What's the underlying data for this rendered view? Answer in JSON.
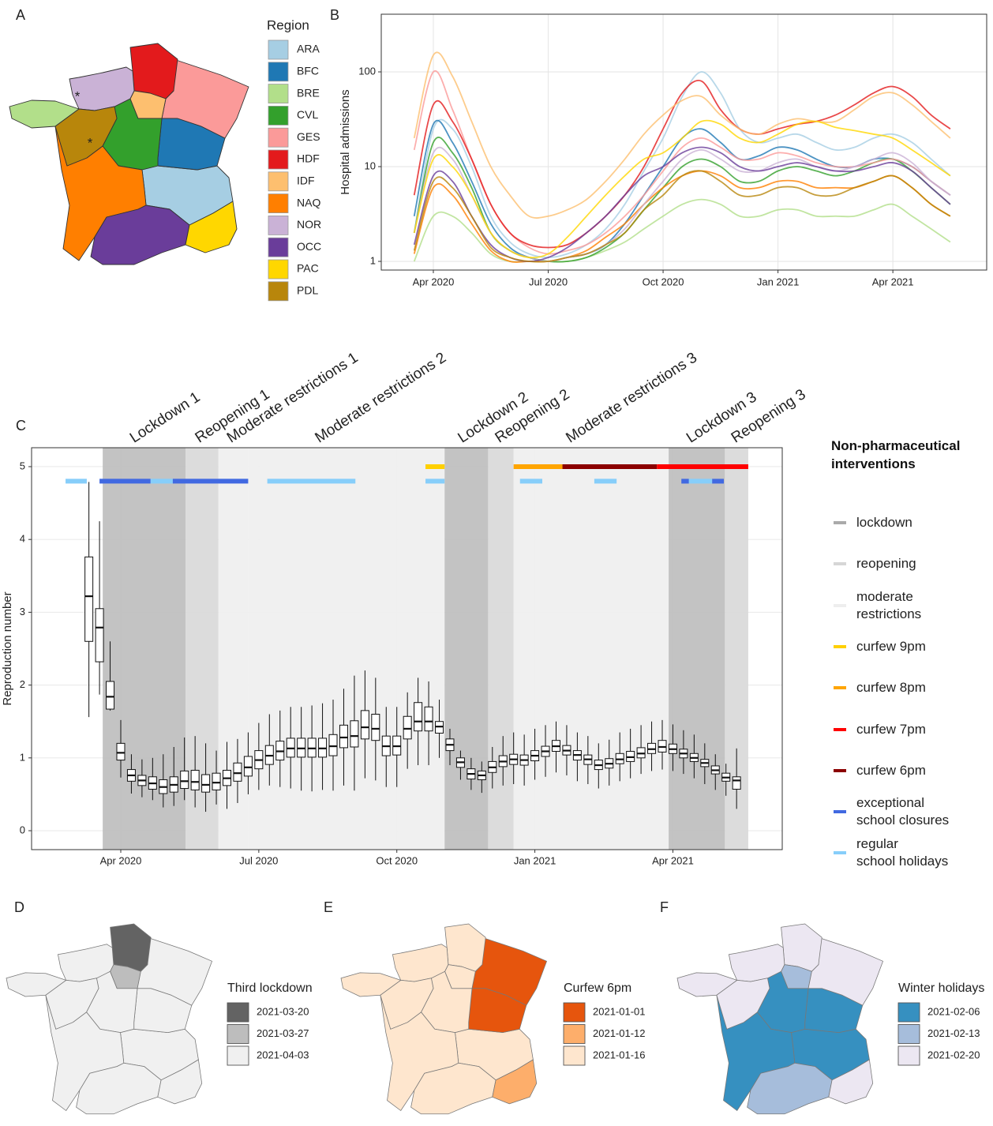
{
  "panel_labels": [
    "A",
    "B",
    "C",
    "D",
    "E",
    "F"
  ],
  "map_annotations": [
    "*",
    "*"
  ],
  "chart_data": [
    {
      "type": "line",
      "ylabel": "Hospital admissions",
      "log_y": true,
      "grid": true,
      "legend_title": "Region",
      "categories": [
        null,
        "Apr 2020",
        null,
        null,
        null,
        null,
        null,
        "Jul 2020",
        null,
        null,
        null,
        null,
        null,
        "Oct 2020",
        null,
        null,
        null,
        null,
        null,
        "Jan 2021",
        null,
        null,
        null,
        null,
        null,
        "Apr 2021",
        null,
        null,
        null
      ],
      "xlim": [
        -1.72,
        29.9
      ],
      "ylim": [
        0.81,
        406
      ],
      "yticks": [
        1,
        10,
        100
      ],
      "series": [
        {
          "name": "ARA",
          "color": "#a6cee3",
          "values": [
            2,
            25,
            25,
            10,
            3,
            1.6,
            1.2,
            1.1,
            1.2,
            1.5,
            2.2,
            4,
            9,
            20,
            55,
            100,
            60,
            25,
            18,
            20,
            22,
            18,
            15,
            16,
            20,
            22,
            18,
            12,
            8
          ]
        },
        {
          "name": "BFC",
          "color": "#1f78b4",
          "values": [
            3,
            28,
            18,
            7,
            2.5,
            1.4,
            1.1,
            1,
            1.1,
            1.2,
            1.5,
            2.5,
            5,
            10,
            20,
            25,
            18,
            12,
            13,
            16,
            15,
            12,
            10,
            10,
            12,
            12,
            10,
            7,
            5
          ]
        },
        {
          "name": "BRE",
          "color": "#b2df8a",
          "values": [
            1,
            3,
            3,
            2,
            1.2,
            1,
            1,
            1,
            1,
            1.1,
            1.3,
            1.6,
            2.2,
            3,
            4,
            4.5,
            4,
            3,
            3,
            3.5,
            3.5,
            3,
            3,
            3,
            3.5,
            4,
            3,
            2.2,
            1.6
          ]
        },
        {
          "name": "CVL",
          "color": "#33a02c",
          "values": [
            2,
            18,
            14,
            6,
            2,
            1.3,
            1.1,
            1,
            1,
            1.1,
            1.4,
            2,
            3.5,
            6,
            10,
            12,
            10,
            7,
            7,
            9,
            10,
            9,
            8,
            9,
            11,
            12,
            9,
            6,
            4
          ]
        },
        {
          "name": "GES",
          "color": "#fb9a99",
          "values": [
            15,
            100,
            40,
            12,
            4,
            2,
            1.4,
            1.2,
            1.3,
            1.5,
            2,
            3,
            5,
            9,
            16,
            20,
            16,
            12,
            12,
            14,
            13,
            11,
            10,
            10,
            11,
            12,
            10,
            7,
            5
          ]
        },
        {
          "name": "HDF",
          "color": "#e31a1c",
          "values": [
            5,
            45,
            30,
            12,
            4,
            2,
            1.5,
            1.4,
            1.5,
            2,
            3,
            5,
            10,
            25,
            60,
            80,
            40,
            25,
            22,
            25,
            28,
            30,
            35,
            45,
            60,
            70,
            55,
            35,
            25
          ]
        },
        {
          "name": "IDF",
          "color": "#fdbf6f",
          "values": [
            20,
            150,
            90,
            30,
            10,
            5,
            3,
            3,
            3.5,
            4.5,
            7,
            12,
            22,
            35,
            50,
            55,
            35,
            25,
            22,
            28,
            32,
            30,
            30,
            40,
            55,
            60,
            45,
            30,
            20
          ]
        },
        {
          "name": "NAQ",
          "color": "#ff7f00",
          "values": [
            1.2,
            6,
            5,
            2.5,
            1.3,
            1,
            1,
            1,
            1.1,
            1.3,
            1.8,
            2.5,
            4,
            6,
            8,
            9,
            8,
            6,
            6,
            7,
            7,
            6,
            6,
            6,
            7,
            8,
            6,
            4,
            3
          ]
        },
        {
          "name": "NOR",
          "color": "#cab2d6",
          "values": [
            2,
            14,
            12,
            5,
            2,
            1.3,
            1.1,
            1,
            1.1,
            1.2,
            1.5,
            2.2,
            4,
            7,
            12,
            15,
            12,
            9,
            9,
            11,
            12,
            10,
            9,
            10,
            12,
            14,
            11,
            7,
            5
          ]
        },
        {
          "name": "OCC",
          "color": "#6a3d9a",
          "values": [
            1.5,
            8,
            7,
            3,
            1.5,
            1.1,
            1,
            1.1,
            1.4,
            2,
            3,
            5,
            8,
            10,
            14,
            16,
            14,
            10,
            9,
            10,
            11,
            10,
            9,
            9,
            10,
            11,
            9,
            6,
            4
          ]
        },
        {
          "name": "PAC",
          "color": "#ffd700",
          "values": [
            2,
            12,
            10,
            5,
            2,
            1.3,
            1.1,
            1.2,
            1.8,
            3,
            5,
            8,
            12,
            14,
            20,
            30,
            28,
            20,
            18,
            22,
            28,
            30,
            26,
            24,
            22,
            20,
            15,
            11,
            8
          ]
        },
        {
          "name": "PDL",
          "color": "#b8860b",
          "values": [
            1.3,
            7,
            6,
            3,
            1.4,
            1.1,
            1,
            1,
            1.1,
            1.2,
            1.5,
            2,
            3.5,
            5,
            8,
            9,
            7,
            5,
            5,
            6,
            6,
            5,
            5,
            6,
            7,
            8,
            6,
            4,
            3
          ]
        }
      ]
    },
    {
      "type": "box",
      "ylabel": "Reproduction number",
      "grid": true,
      "categories": [
        null,
        null,
        null,
        "Apr 2020",
        null,
        null,
        null,
        null,
        null,
        null,
        null,
        null,
        null,
        null,
        null,
        null,
        "Jul 2020",
        null,
        null,
        null,
        null,
        null,
        null,
        null,
        null,
        null,
        null,
        null,
        null,
        "Oct 2020",
        null,
        null,
        null,
        null,
        null,
        null,
        null,
        null,
        null,
        null,
        null,
        null,
        "Jan 2021",
        null,
        null,
        null,
        null,
        null,
        null,
        null,
        null,
        null,
        null,
        null,
        null,
        "Apr 2021",
        null,
        null,
        null,
        null,
        null,
        null
      ],
      "xlim": [
        -5.4,
        65.3
      ],
      "ylim": [
        -0.26,
        5.26
      ],
      "yticks": [
        0,
        1,
        2,
        3,
        4,
        5
      ],
      "low": [
        1.56,
        1.87,
        1.65,
        0.73,
        0.51,
        0.46,
        0.42,
        0.32,
        0.34,
        0.42,
        0.32,
        0.26,
        0.36,
        0.3,
        0.38,
        0.5,
        0.56,
        0.62,
        0.6,
        0.58,
        0.55,
        0.54,
        0.56,
        0.55,
        0.62,
        0.55,
        0.72,
        0.69,
        0.6,
        0.6,
        0.85,
        0.9,
        0.9,
        1.0,
        0.9,
        0.7,
        0.56,
        0.52,
        0.58,
        0.62,
        0.64,
        0.62,
        0.7,
        0.74,
        0.8,
        0.76,
        0.68,
        0.64,
        0.58,
        0.62,
        0.68,
        0.72,
        0.78,
        0.82,
        0.84,
        0.82,
        0.78,
        0.72,
        0.64,
        0.56,
        0.48,
        0.3
      ],
      "q1": [
        2.6,
        2.32,
        1.67,
        0.97,
        0.68,
        0.62,
        0.57,
        0.51,
        0.53,
        0.58,
        0.56,
        0.53,
        0.56,
        0.62,
        0.68,
        0.75,
        0.85,
        0.91,
        0.97,
        1.01,
        1.01,
        1.01,
        1.01,
        1.03,
        1.14,
        1.15,
        1.26,
        1.24,
        1.03,
        1.04,
        1.26,
        1.37,
        1.37,
        1.34,
        1.1,
        0.87,
        0.71,
        0.7,
        0.8,
        0.88,
        0.91,
        0.9,
        0.96,
        1.02,
        1.09,
        1.04,
        0.97,
        0.91,
        0.84,
        0.86,
        0.92,
        0.95,
        1.0,
        1.06,
        1.08,
        1.06,
        1.0,
        0.95,
        0.88,
        0.78,
        0.68,
        0.57
      ],
      "median": [
        3.22,
        2.79,
        1.84,
        1.07,
        0.76,
        0.69,
        0.65,
        0.6,
        0.63,
        0.68,
        0.67,
        0.63,
        0.66,
        0.72,
        0.79,
        0.87,
        0.97,
        1.03,
        1.09,
        1.13,
        1.13,
        1.13,
        1.13,
        1.16,
        1.28,
        1.3,
        1.42,
        1.4,
        1.16,
        1.16,
        1.4,
        1.5,
        1.5,
        1.43,
        1.18,
        0.94,
        0.78,
        0.76,
        0.87,
        0.95,
        0.98,
        0.97,
        1.03,
        1.09,
        1.16,
        1.1,
        1.04,
        0.98,
        0.9,
        0.92,
        0.98,
        1.01,
        1.06,
        1.12,
        1.15,
        1.12,
        1.06,
        1.0,
        0.93,
        0.83,
        0.73,
        0.69
      ],
      "q3": [
        3.76,
        3.05,
        2.05,
        1.2,
        0.84,
        0.76,
        0.74,
        0.7,
        0.74,
        0.82,
        0.83,
        0.77,
        0.79,
        0.83,
        0.93,
        1.02,
        1.1,
        1.17,
        1.23,
        1.27,
        1.27,
        1.27,
        1.27,
        1.32,
        1.45,
        1.51,
        1.65,
        1.6,
        1.3,
        1.3,
        1.57,
        1.76,
        1.7,
        1.5,
        1.26,
        1.0,
        0.85,
        0.82,
        0.95,
        1.03,
        1.05,
        1.04,
        1.1,
        1.16,
        1.24,
        1.17,
        1.1,
        1.04,
        0.97,
        0.99,
        1.06,
        1.09,
        1.14,
        1.2,
        1.24,
        1.19,
        1.12,
        1.06,
        0.98,
        0.89,
        0.79,
        0.74
      ],
      "high": [
        4.79,
        4.25,
        2.6,
        1.52,
        1.05,
        0.98,
        1.0,
        1.05,
        1.15,
        1.28,
        1.3,
        1.2,
        1.1,
        1.22,
        1.26,
        1.35,
        1.48,
        1.6,
        1.65,
        1.7,
        1.7,
        1.72,
        1.75,
        1.8,
        1.95,
        2.13,
        2.2,
        2.1,
        1.7,
        1.7,
        1.9,
        2.1,
        2.05,
        1.8,
        1.4,
        1.1,
        1.0,
        0.95,
        1.15,
        1.3,
        1.35,
        1.32,
        1.4,
        1.45,
        1.5,
        1.45,
        1.35,
        1.3,
        1.2,
        1.25,
        1.35,
        1.4,
        1.45,
        1.5,
        1.52,
        1.46,
        1.38,
        1.32,
        1.2,
        1.05,
        0.92,
        1.13
      ],
      "periods": [
        {
          "label": "Lockdown 1",
          "from": 1.3,
          "to": 9.1,
          "color": "#bebebe"
        },
        {
          "label": "Reopening 1",
          "from": 9.1,
          "to": 12.2,
          "color": "#d9d9d9"
        },
        {
          "label": "Moderate restrictions 1",
          "from": 12.2,
          "to": 15.0,
          "color": "#efefef"
        },
        {
          "label": "Moderate restrictions 2",
          "from": 15.0,
          "to": 33.5,
          "color": "#efefef"
        },
        {
          "label": "Lockdown 2",
          "from": 33.5,
          "to": 37.6,
          "color": "#bebebe"
        },
        {
          "label": "Reopening 2",
          "from": 37.6,
          "to": 40.0,
          "color": "#d9d9d9"
        },
        {
          "label": "Moderate restrictions 3",
          "from": 40.0,
          "to": 54.6,
          "color": "#efefef"
        },
        {
          "label": "Lockdown 3",
          "from": 54.6,
          "to": 59.9,
          "color": "#bebebe"
        },
        {
          "label": "Reopening 3",
          "from": 59.9,
          "to": 62.1,
          "color": "#d9d9d9"
        }
      ],
      "bars": [
        {
          "level": 4.8,
          "from": -2.2,
          "to": -0.2,
          "color": "#87cefa"
        },
        {
          "level": 4.8,
          "from": 5.8,
          "to": 7.9,
          "color": "#87cefa"
        },
        {
          "level": 4.8,
          "from": 16.8,
          "to": 25.1,
          "color": "#87cefa"
        },
        {
          "level": 4.8,
          "from": 31.7,
          "to": 33.5,
          "color": "#87cefa"
        },
        {
          "level": 4.8,
          "from": 40.6,
          "to": 42.7,
          "color": "#87cefa"
        },
        {
          "level": 4.8,
          "from": 47.6,
          "to": 49.7,
          "color": "#87cefa"
        },
        {
          "level": 4.8,
          "from": 56.5,
          "to": 58.7,
          "color": "#87cefa"
        },
        {
          "level": 4.8,
          "from": 1.0,
          "to": 5.8,
          "color": "#4169e1"
        },
        {
          "level": 4.8,
          "from": 7.9,
          "to": 15.0,
          "color": "#4169e1"
        },
        {
          "level": 4.8,
          "from": 55.8,
          "to": 56.5,
          "color": "#4169e1"
        },
        {
          "level": 4.8,
          "from": 58.7,
          "to": 59.8,
          "color": "#4169e1"
        },
        {
          "level": 5,
          "from": 31.7,
          "to": 33.5,
          "color": "#ffd000"
        },
        {
          "level": 5,
          "from": 40.0,
          "to": 44.6,
          "color": "#ffa500"
        },
        {
          "level": 5,
          "from": 44.6,
          "to": 53.5,
          "color": "#8b0000"
        },
        {
          "level": 5,
          "from": 53.5,
          "to": 62.1,
          "color": "#ff0000"
        }
      ],
      "legend_title": "Non-pharmaceutical\ninterventions",
      "legend": [
        {
          "name": "lockdown",
          "color": "#aaaaaa"
        },
        {
          "name": "reopening",
          "color": "#d6d6d6"
        },
        {
          "name": "moderate\nrestrictions",
          "color": "#eeeeee"
        },
        {
          "name": "curfew 9pm",
          "color": "#ffd000"
        },
        {
          "name": "curfew 8pm",
          "color": "#ffa500"
        },
        {
          "name": "curfew 7pm",
          "color": "#ff0000"
        },
        {
          "name": "curfew 6pm",
          "color": "#8b0000"
        },
        {
          "name": "exceptional\nschool closures",
          "color": "#4169e1"
        },
        {
          "name": "regular\nschool holidays",
          "color": "#87cefa"
        }
      ]
    }
  ],
  "maps": [
    {
      "legend_title": "Third lockdown",
      "entries": [
        {
          "label": "2021-03-20",
          "color": "#636363"
        },
        {
          "label": "2021-03-27",
          "color": "#bdbdbd"
        },
        {
          "label": "2021-04-03",
          "color": "#f0f0f0"
        }
      ],
      "region_colors": [
        "#f0f0f0",
        "#f0f0f0",
        "#f0f0f0",
        "#f0f0f0",
        "#f0f0f0",
        "#636363",
        "#bdbdbd",
        "#f0f0f0",
        "#f0f0f0",
        "#f0f0f0",
        "#f0f0f0",
        "#f0f0f0"
      ]
    },
    {
      "legend_title": "Curfew 6pm",
      "entries": [
        {
          "label": "2021-01-01",
          "color": "#e6550d"
        },
        {
          "label": "2021-01-12",
          "color": "#fdae6b"
        },
        {
          "label": "2021-01-16",
          "color": "#fee6ce"
        }
      ],
      "region_colors": [
        "#fee6ce",
        "#e6550d",
        "#fee6ce",
        "#fee6ce",
        "#e6550d",
        "#fee6ce",
        "#fee6ce",
        "#fee6ce",
        "#fee6ce",
        "#fee6ce",
        "#fdae6b",
        "#fee6ce"
      ]
    },
    {
      "legend_title": "Winter holidays",
      "entries": [
        {
          "label": "2021-02-06",
          "color": "#3690c0"
        },
        {
          "label": "2021-02-13",
          "color": "#a6bddb"
        },
        {
          "label": "2021-02-20",
          "color": "#ece7f2"
        }
      ],
      "region_colors": [
        "#3690c0",
        "#3690c0",
        "#ece7f2",
        "#3690c0",
        "#ece7f2",
        "#ece7f2",
        "#a6bddb",
        "#3690c0",
        "#ece7f2",
        "#a6bddb",
        "#ece7f2",
        "#ece7f2"
      ]
    }
  ]
}
